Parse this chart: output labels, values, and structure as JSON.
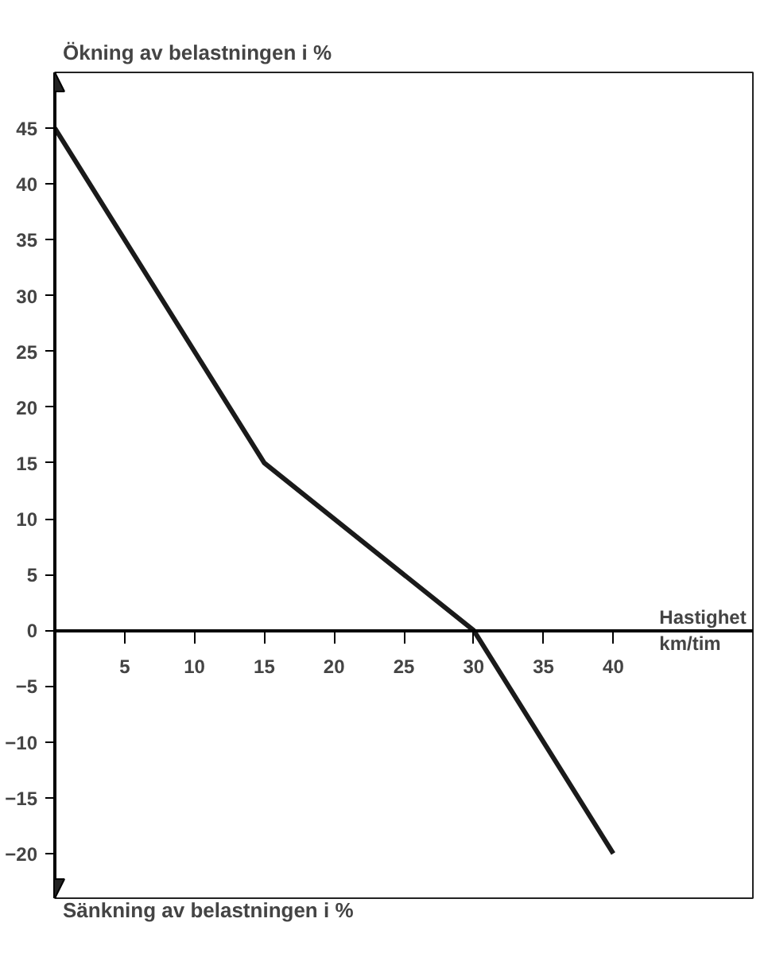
{
  "chart_data": {
    "type": "line",
    "ylabel": "Ökning av belastningen i %",
    "xlabel": "Hastighet km/tim",
    "annotations": [
      "Sänkning av belastningen i %"
    ],
    "x": [
      0,
      15,
      30,
      40
    ],
    "series": [
      {
        "color": "#1a1a1a",
        "values": [
          45,
          15,
          0,
          -20
        ]
      }
    ],
    "xlim": [
      0,
      50
    ],
    "ylim": [
      -24,
      50
    ],
    "xticks": [
      5,
      10,
      15,
      20,
      25,
      30,
      35,
      40
    ],
    "yticks": [
      -20,
      -15,
      -10,
      -5,
      0,
      5,
      10,
      15,
      20,
      25,
      30,
      35,
      40,
      45
    ],
    "grid": false,
    "marker": "none",
    "line_style": "solid"
  }
}
